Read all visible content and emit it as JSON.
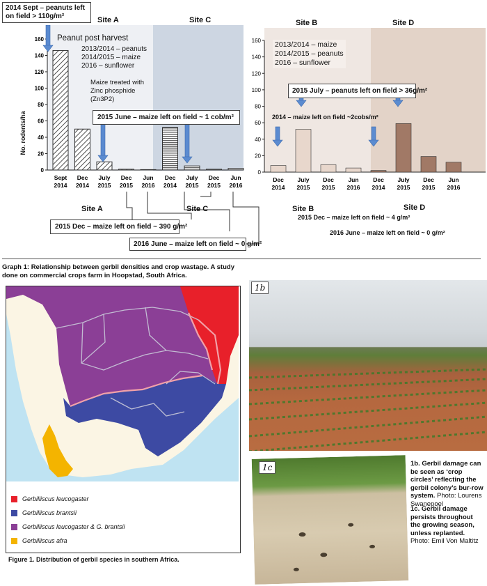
{
  "top_callout": "2014 Sept – peanuts left on field > 110g/m²",
  "graph1": {
    "site_labels_top": [
      "Site A",
      "Site C"
    ],
    "ylabel": "No. rodents/ha",
    "peanut_label": "Peanut post harvest",
    "crop_history": [
      "2013/2014 – peanuts",
      "2014/2015 – maize",
      "2016 – sunflower"
    ],
    "treatment_note": [
      "Maize treated with",
      "Zinc phosphide",
      "(Zn3P2)"
    ],
    "june_callout": "2015 June – maize left on field ~ 1 cob/m²"
  },
  "graph2": {
    "site_labels_top": [
      "Site B",
      "Site D"
    ],
    "crop_history": [
      "2013/2014 – maize",
      "2014/2015 – peanuts",
      "2016 – sunflower"
    ],
    "july_callout": "2015 July – peanuts left on field > 36g/m²",
    "dec_note": "2014 – maize left on field ~2cobs/m²",
    "site_labels_bottom": [
      "Site B",
      "Site D"
    ],
    "note1": "2015 Dec – maize left on field ~ 4 g/m²",
    "note2": "2016 June – maize left on field ~ 0 g/m²"
  },
  "lower_left": {
    "site_a": "Site A",
    "site_c": "Site C",
    "dec_callout": "2015 Dec – maize left on field ~ 390 g/m²",
    "june_callout": "2016 June – maize left on field ~ 0 g/m²"
  },
  "graph_caption": "Graph 1: Relationship between gerbil densities and crop wastage. A study done on commercial crops farm in Hoopstad, South Africa.",
  "map": {
    "legend": [
      {
        "label": "Gerbilliscus leucogaster",
        "color": "#e8202a"
      },
      {
        "label": "Gerbilliscus brantsii",
        "color": "#3d4aa3"
      },
      {
        "label": "Gerbilliscus leucogaster & G. brantsii",
        "color": "#8b3f96"
      },
      {
        "label": "Gerbilliscus afra",
        "color": "#f4b400"
      }
    ],
    "caption": "Figure 1. Distribution of gerbil species in southern Africa."
  },
  "photos": {
    "badge_1b": "1b",
    "badge_1c": "1c",
    "cap_1b_bold": "1b. Gerbil damage can be seen as ‘crop circles’ reflecting the gerbil colony’s bur-row system.",
    "cap_1b_credit": "Photo: Lourens Swanepoel",
    "cap_1c_bold": "1c. Gerbil damage persists throughout the growing season, unless replanted.",
    "cap_1c_credit": "Photo: Emil Von Maltitz"
  },
  "chart_data": [
    {
      "type": "bar",
      "title": "",
      "ylabel": "No. rodents/ha",
      "xlabel": "",
      "ylim": [
        0,
        160
      ],
      "yticks": [
        0,
        20,
        40,
        60,
        80,
        100,
        120,
        140,
        160
      ],
      "categories": [
        "Sept 2014",
        "Dec 2014",
        "July 2015",
        "Dec 2015",
        "Jun 2016",
        "Dec 2014",
        "July 2015",
        "Dec 2015",
        "Jun 2016"
      ],
      "series": [
        {
          "name": "Site A",
          "values": [
            146,
            50,
            10,
            1,
            0,
            null,
            null,
            null,
            null
          ],
          "pattern": "diagonal"
        },
        {
          "name": "Site C",
          "values": [
            null,
            null,
            null,
            null,
            null,
            52,
            5,
            1,
            2
          ],
          "pattern": "horizontal"
        }
      ],
      "grid": false
    },
    {
      "type": "bar",
      "title": "",
      "ylim": [
        0,
        160
      ],
      "yticks": [
        0,
        20,
        40,
        60,
        80,
        100,
        120,
        140,
        160
      ],
      "categories": [
        "Dec 2014",
        "July 2015",
        "Dec 2015",
        "Jun 2016",
        "Dec 2014",
        "July 2015",
        "Dec 2015",
        "Jun 2016"
      ],
      "series": [
        {
          "name": "Site B",
          "values": [
            8,
            52,
            9,
            5,
            null,
            null,
            null,
            null
          ],
          "color": "#e8d7cc"
        },
        {
          "name": "Site D",
          "values": [
            null,
            null,
            null,
            null,
            2,
            59,
            19,
            12
          ],
          "color": "#a17966"
        }
      ],
      "grid": false
    }
  ]
}
